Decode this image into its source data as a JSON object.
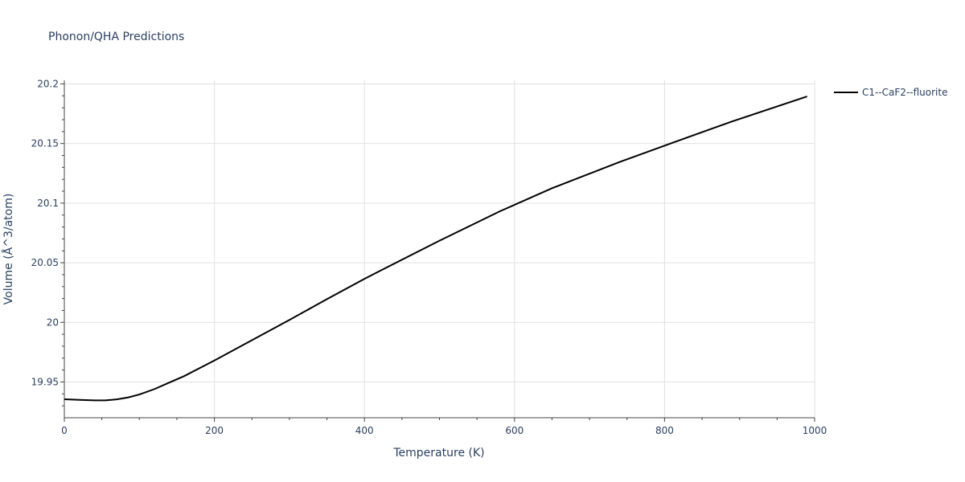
{
  "chart_data": {
    "type": "line",
    "title": "Phonon/QHA Predictions",
    "xlabel": "Temperature (K)",
    "ylabel": "Volume (Å^3/atom)",
    "xlim": [
      0,
      1000
    ],
    "ylim": [
      19.92,
      20.203
    ],
    "x_ticks": [
      0,
      200,
      400,
      600,
      800,
      1000
    ],
    "x_tick_labels": [
      "0",
      "200",
      "400",
      "600",
      "800",
      "1000"
    ],
    "y_ticks": [
      19.95,
      20,
      20.05,
      20.1,
      20.15,
      20.2
    ],
    "y_tick_labels": [
      "19.95",
      "20",
      "20.05",
      "20.1",
      "20.15",
      "20.2"
    ],
    "grid": true,
    "legend_position": "top-right",
    "series": [
      {
        "name": "C1--CaF2--fluorite",
        "color": "#000000",
        "x": [
          0,
          20,
          40,
          55,
          70,
          85,
          100,
          120,
          140,
          160,
          180,
          200,
          250,
          300,
          350,
          400,
          420,
          500,
          580,
          650,
          740,
          810,
          890,
          990
        ],
        "y": [
          19.9355,
          19.935,
          19.9346,
          19.9346,
          19.9354,
          19.937,
          19.9395,
          19.944,
          19.9495,
          19.955,
          19.9615,
          19.968,
          19.985,
          20.002,
          20.0195,
          20.0365,
          20.043,
          20.0685,
          20.093,
          20.1125,
          20.1345,
          20.1505,
          20.1685,
          20.1895
        ]
      }
    ]
  }
}
